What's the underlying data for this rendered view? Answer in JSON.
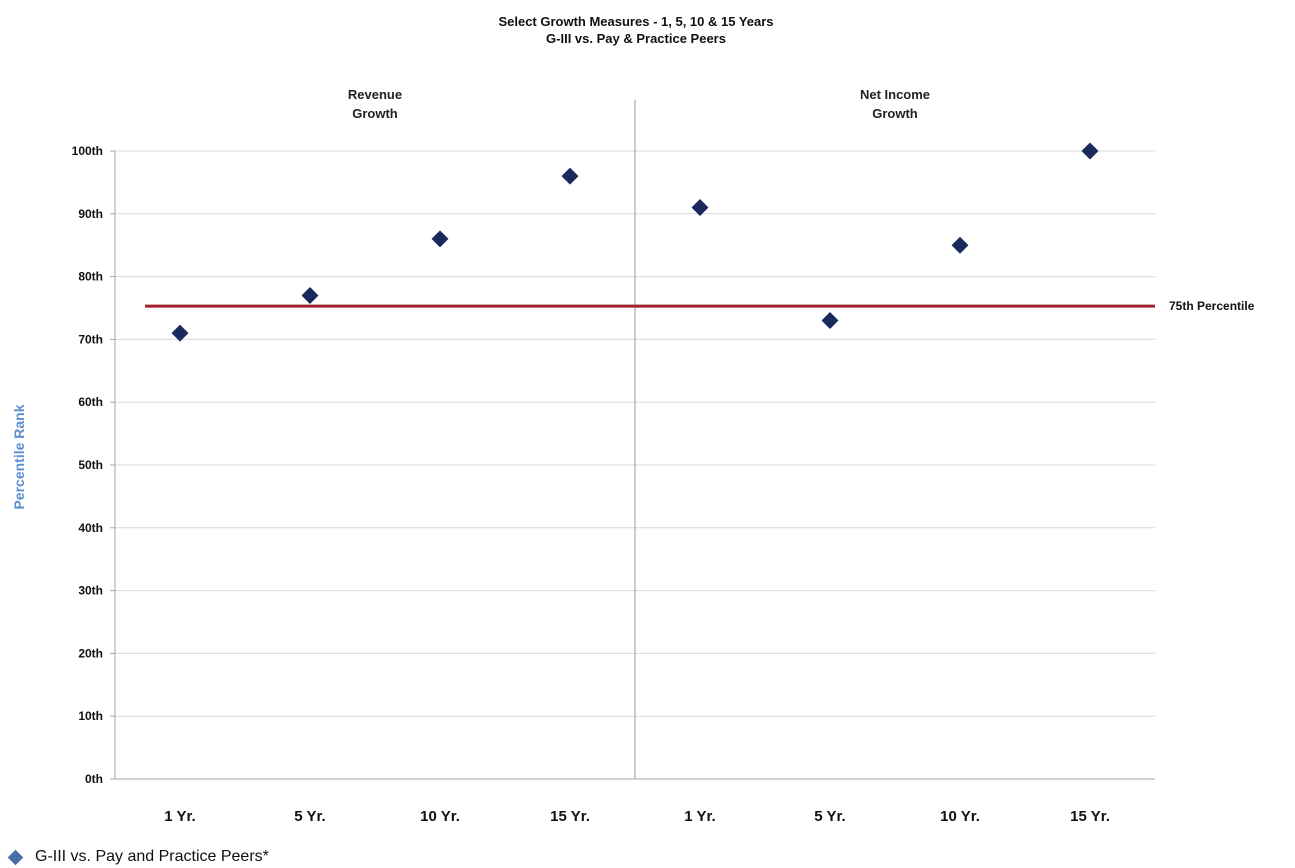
{
  "chart_data": {
    "type": "scatter",
    "title": "Select Growth Measures - 1, 5, 10 & 15 Years",
    "subtitle": "G-III vs. Pay & Practice Peers",
    "ylabel": "Percentile Rank",
    "xlabel": "",
    "ylim": [
      0,
      100
    ],
    "yticks": [
      "0th",
      "10th",
      "20th",
      "30th",
      "40th",
      "50th",
      "60th",
      "70th",
      "80th",
      "90th",
      "100th"
    ],
    "grid": true,
    "groups": [
      {
        "label_line1": "Revenue",
        "label_line2": "Growth",
        "categories": [
          "1 Yr.",
          "5 Yr.",
          "10 Yr.",
          "15 Yr."
        ],
        "values": [
          71,
          77,
          86,
          96
        ]
      },
      {
        "label_line1": "Net Income",
        "label_line2": "Growth",
        "categories": [
          "1 Yr.",
          "5 Yr.",
          "10 Yr.",
          "15 Yr."
        ],
        "values": [
          91,
          73,
          85,
          100
        ]
      }
    ],
    "reference_line": {
      "value": 75.3,
      "label": "75th Percentile",
      "color": "#a3202a"
    },
    "series": [
      {
        "name": "G-III vs. Pay and Practice Peers*",
        "color": "#1b2a5c"
      }
    ],
    "legend_position": "bottom-left",
    "colors": {
      "ylabel": "#5b8fd1",
      "grid": "#d9d9d9",
      "divider": "#b8b8cc",
      "axis": "#a6a6a6",
      "legend_marker": "#4a6fa8"
    }
  }
}
